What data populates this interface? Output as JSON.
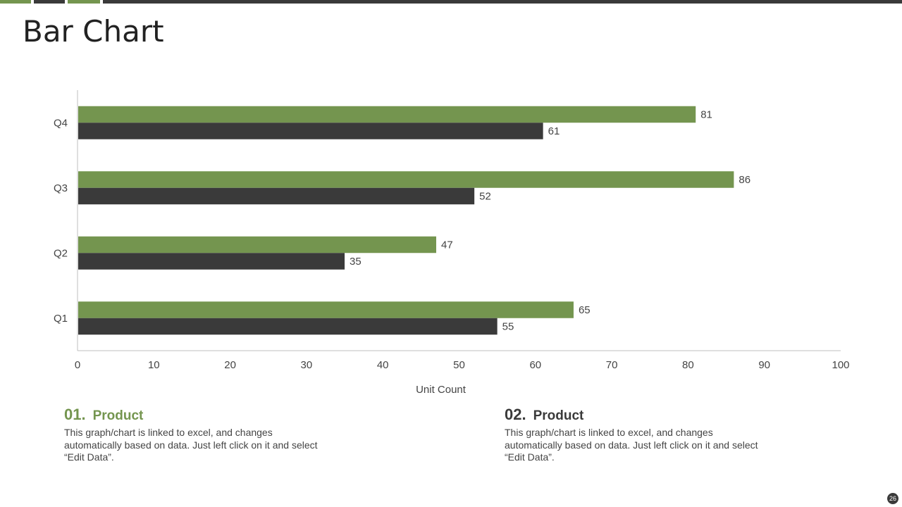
{
  "slide": {
    "title": "Bar Chart",
    "page_number": "26"
  },
  "colors": {
    "green": "#74954f",
    "dark": "#3a3a3a",
    "axis": "#bfbfbf"
  },
  "chart_data": {
    "type": "bar",
    "orientation": "horizontal",
    "categories": [
      "Q1",
      "Q2",
      "Q3",
      "Q4"
    ],
    "series": [
      {
        "name": "Product 01",
        "color": "#74954f",
        "values": [
          65,
          47,
          86,
          81
        ]
      },
      {
        "name": "Product 02",
        "color": "#3a3a3a",
        "values": [
          55,
          35,
          52,
          61
        ]
      }
    ],
    "x_ticks": [
      0,
      10,
      20,
      30,
      40,
      50,
      60,
      70,
      80,
      90,
      100
    ],
    "xlim": [
      0,
      100
    ],
    "xlabel": "Unit Count",
    "ylabel": "",
    "title": ""
  },
  "notes": [
    {
      "number": "01.",
      "label": "Product",
      "text": "This graph/chart is linked to excel, and changes automatically based on data. Just left click on it and select “Edit Data”."
    },
    {
      "number": "02.",
      "label": "Product",
      "text": "This graph/chart is linked to excel, and changes automatically based on data. Just left click on it and select “Edit Data”."
    }
  ]
}
